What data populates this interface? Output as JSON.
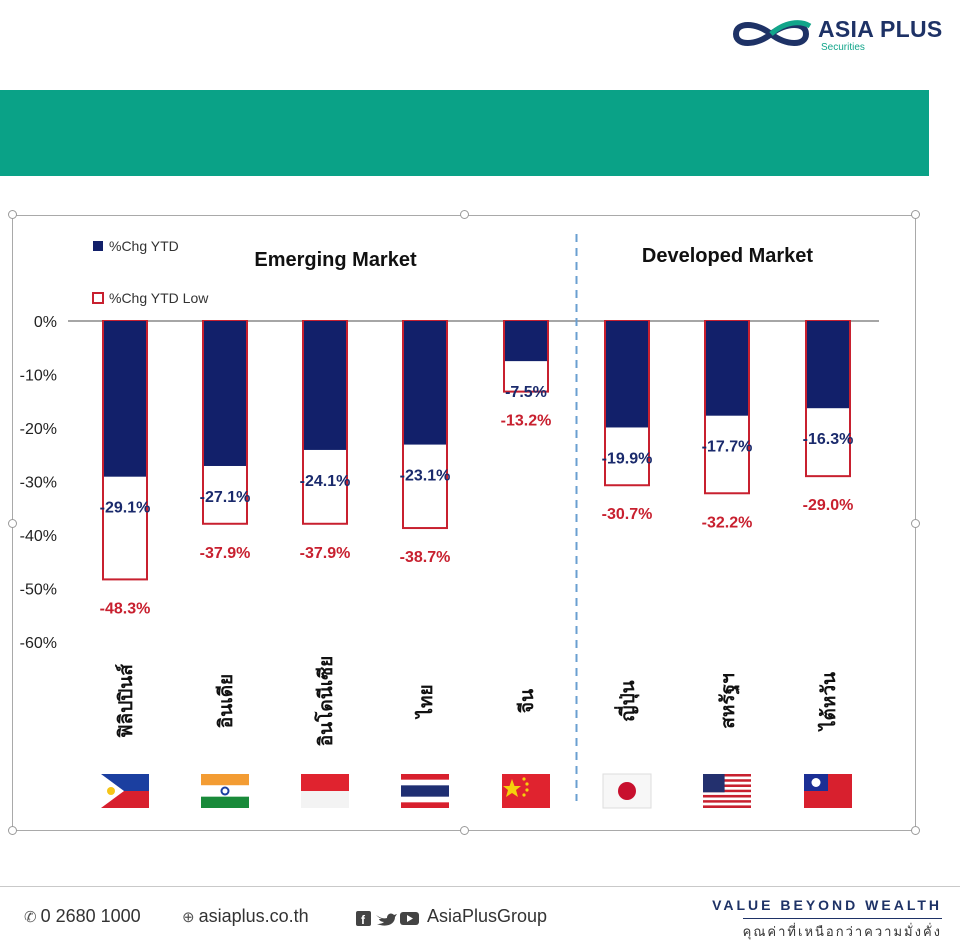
{
  "brand": {
    "name": "ASIA PLUS",
    "sub": "Securities",
    "navy": "#1e3266",
    "teal": "#0aa287"
  },
  "footer": {
    "phone": "0 2680 1000",
    "website": "asiaplus.co.th",
    "social": "AsiaPlusGroup",
    "slogan": "VALUE BEYOND WEALTH",
    "slogan_th": "คุณค่าที่เหนือกว่าความมั่งคั่ง"
  },
  "chart_data": {
    "type": "bar",
    "categories": [
      "ฟิลิปปินส์",
      "อินเดีย",
      "อินโดนีเซีย",
      "ไทย",
      "จีน",
      "ญี่ปุ่น",
      "สหรัฐฯ",
      "ไต้หวัน"
    ],
    "flags": [
      "philippines",
      "india",
      "indonesia",
      "thailand",
      "china",
      "japan",
      "usa",
      "taiwan"
    ],
    "series": [
      {
        "name": "%Chg YTD",
        "color": "#12206a",
        "values": [
          -29.1,
          -27.1,
          -24.1,
          -23.1,
          -7.5,
          -19.9,
          -17.7,
          -16.3
        ],
        "labels": [
          "-29.1%",
          "-27.1%",
          "-24.1%",
          "-23.1%",
          "-7.5%",
          "-19.9%",
          "-17.7%",
          "-16.3%"
        ]
      },
      {
        "name": "%Chg YTD Low",
        "color": "#c8202f",
        "values": [
          -48.3,
          -37.9,
          -37.9,
          -38.7,
          -13.2,
          -30.7,
          -32.2,
          -29.0
        ],
        "labels": [
          "-48.3%",
          "-37.9%",
          "-37.9%",
          "-38.7%",
          "-13.2%",
          "-30.7%",
          "-32.2%",
          "-29.0%"
        ]
      }
    ],
    "groups": [
      {
        "label": "Emerging Market",
        "count": 5
      },
      {
        "label": "Developed Market",
        "count": 3
      }
    ],
    "yticks": [
      0,
      -10,
      -20,
      -30,
      -40,
      -50,
      -60
    ],
    "ytick_labels": [
      "0%",
      "-10%",
      "-20%",
      "-30%",
      "-40%",
      "-50%",
      "-60%"
    ],
    "ylim": [
      -60,
      0
    ],
    "legend_position": "top-left",
    "grid": false
  }
}
